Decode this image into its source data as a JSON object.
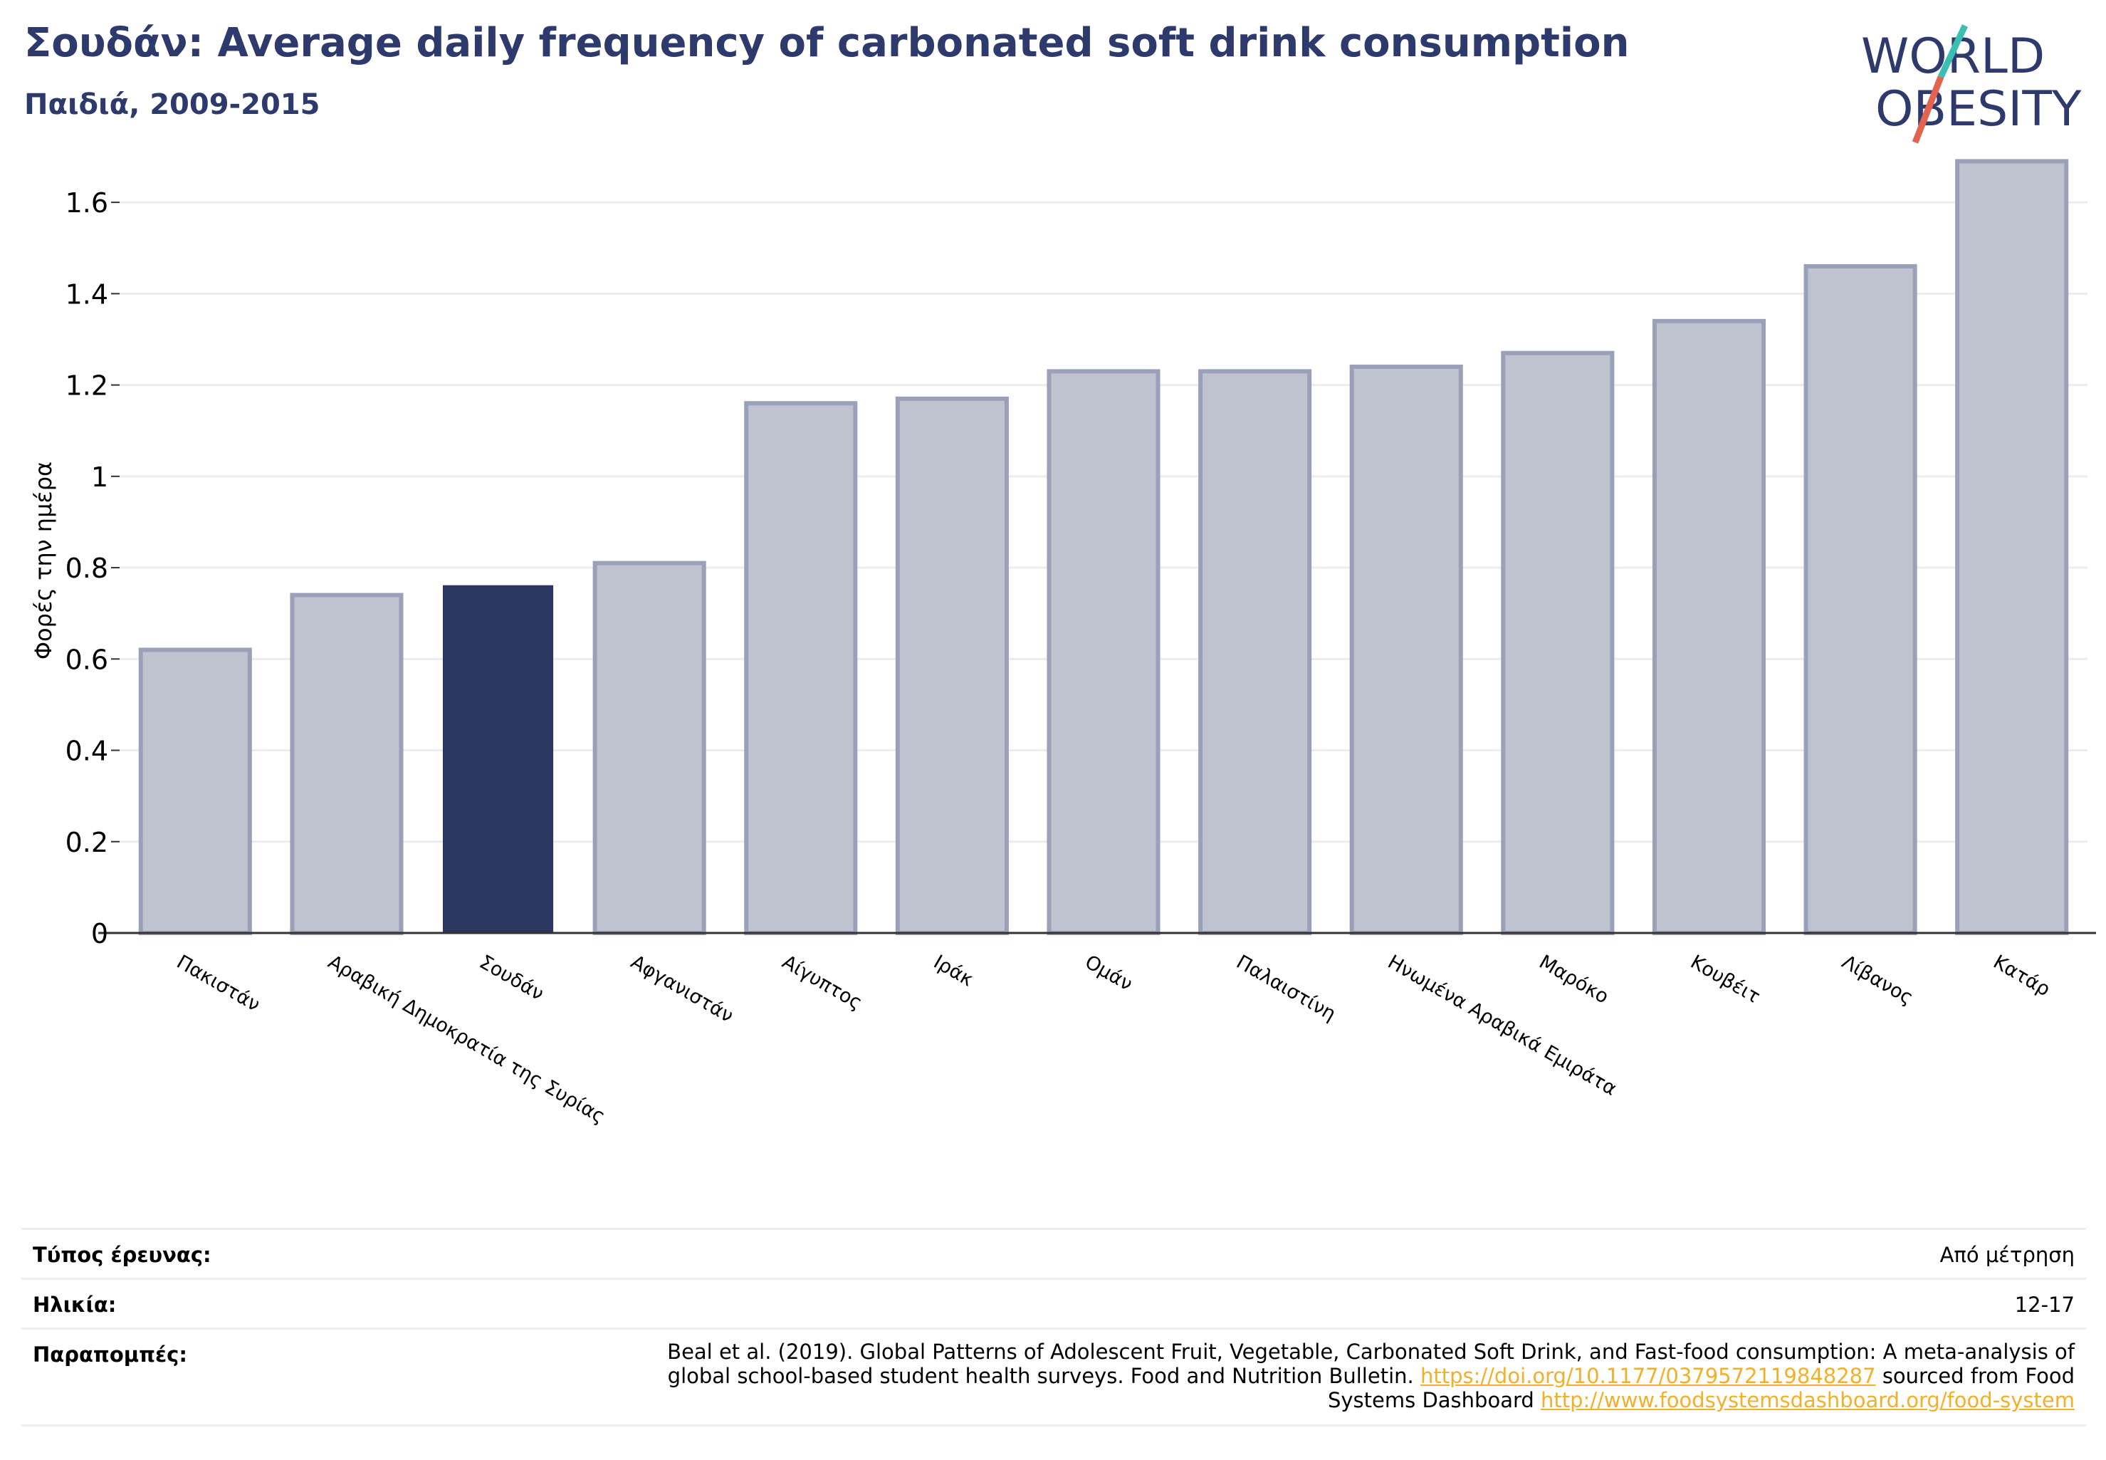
{
  "header": {
    "title": "Σουδάν: Average daily frequency of carbonated soft drink consumption",
    "subtitle": "Παιδιά, 2009-2015"
  },
  "logo": {
    "line1": "WORLD",
    "line2": "OBESITY",
    "icon": "world-obesity-logo"
  },
  "colors": {
    "highlight": "#2d3561",
    "bar_fill": "#bfc2cf",
    "bar_stroke": "#9aa0b8",
    "title": "#2d3a6b",
    "link": "#f2b02a",
    "logo_teal": "#3bbfb2",
    "logo_red": "#e2644f"
  },
  "chart_data": {
    "type": "bar",
    "title": "Σουδάν: Average daily frequency of carbonated soft drink consumption",
    "subtitle": "Παιδιά, 2009-2015",
    "xlabel": "",
    "ylabel": "Φορές την ημέρα",
    "categories": [
      "Πακιστάν",
      "Αραβική Δημοκρατία της Συρίας",
      "Σουδάν",
      "Αφγανιστάν",
      "Αίγυπτος",
      "Ιράκ",
      "Ομάν",
      "Παλαιστίνη",
      "Ηνωμένα Αραβικά Εμιράτα",
      "Μαρόκο",
      "Κουβέιτ",
      "Λίβανος",
      "Κατάρ"
    ],
    "values": [
      0.62,
      0.74,
      0.76,
      0.81,
      1.16,
      1.17,
      1.23,
      1.23,
      1.24,
      1.27,
      1.34,
      1.46,
      1.69
    ],
    "highlight": "Σουδάν",
    "ylim": [
      0,
      1.7
    ],
    "yticks": [
      0,
      0.2,
      0.4,
      0.6,
      0.8,
      1,
      1.2,
      1.4,
      1.6
    ],
    "ytick_labels": [
      "0",
      "0.2",
      "0.4",
      "0.6",
      "0.8",
      "1",
      "1.2",
      "1.4",
      "1.6"
    ],
    "grid": true,
    "legend": "none"
  },
  "meta": {
    "survey_type_label": "Τύπος έρευνας:",
    "survey_type_value": "Από μέτρηση",
    "age_label": "Ηλικία:",
    "age_value": "12-17",
    "references_label": "Παραπομπές:",
    "references_text_1": "Beal et al. (2019). Global Patterns of Adolescent Fruit, Vegetable, Carbonated Soft Drink, and Fast-food consumption: A meta-analysis of global school-based student health surveys. Food and Nutrition Bulletin.",
    "references_link_1": "https://doi.org/10.1177/0379572119848287",
    "references_text_2": "sourced from Food Systems Dashboard",
    "references_link_2": "http://www.foodsystemsdashboard.org/food-system"
  }
}
